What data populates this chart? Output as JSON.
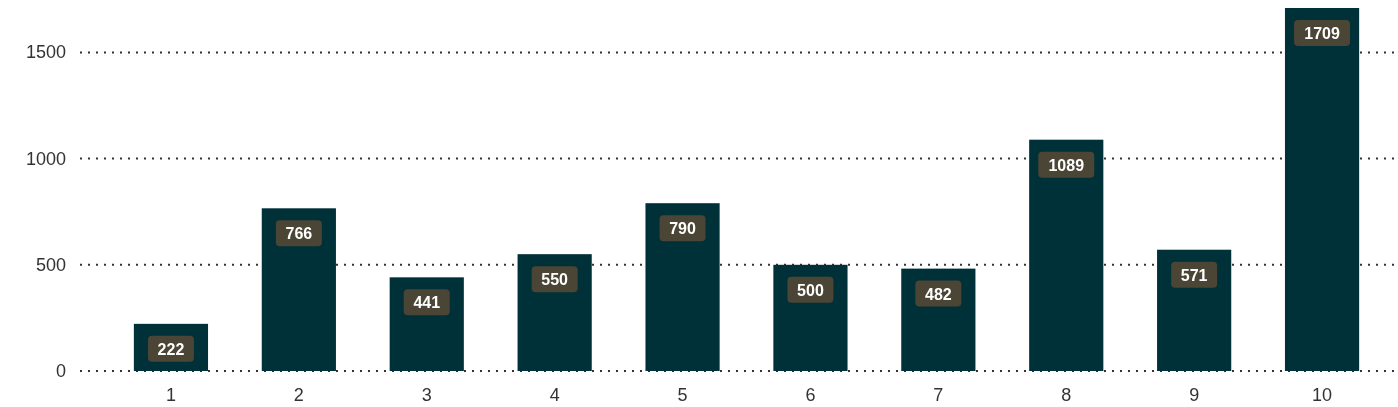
{
  "chart_data": {
    "type": "bar",
    "categories": [
      "1",
      "2",
      "3",
      "4",
      "5",
      "6",
      "7",
      "8",
      "9",
      "10"
    ],
    "values": [
      222,
      766,
      441,
      550,
      790,
      500,
      482,
      1089,
      571,
      1709
    ],
    "color": "#003038",
    "ylim": [
      0,
      1709
    ],
    "yticks": [
      0,
      500,
      1000,
      1500
    ],
    "grid": "y",
    "data_labels": true
  }
}
